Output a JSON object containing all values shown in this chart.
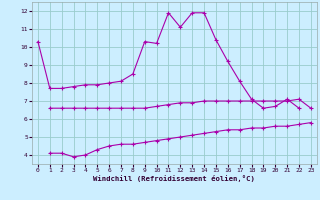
{
  "background_color": "#cceeff",
  "line_color": "#aa00aa",
  "grid_color": "#99cccc",
  "xlim": [
    -0.5,
    23.5
  ],
  "ylim": [
    3.5,
    12.5
  ],
  "yticks": [
    4,
    5,
    6,
    7,
    8,
    9,
    10,
    11,
    12
  ],
  "xticks": [
    0,
    1,
    2,
    3,
    4,
    5,
    6,
    7,
    8,
    9,
    10,
    11,
    12,
    13,
    14,
    15,
    16,
    17,
    18,
    19,
    20,
    21,
    22,
    23
  ],
  "xlabel": "Windchill (Refroidissement éolien,°C)",
  "series": [
    {
      "x": [
        0,
        1,
        2,
        3,
        4,
        5,
        6,
        7,
        8,
        9,
        10,
        11,
        12,
        13,
        14,
        15,
        16,
        17,
        18,
        19,
        20,
        21,
        22
      ],
      "y": [
        10.3,
        7.7,
        7.7,
        7.8,
        7.9,
        7.9,
        8.0,
        8.1,
        8.5,
        10.3,
        10.2,
        11.9,
        11.1,
        11.9,
        11.9,
        10.4,
        9.2,
        8.1,
        7.1,
        6.6,
        6.7,
        7.1,
        6.6
      ]
    },
    {
      "x": [
        1,
        2,
        3,
        4,
        5,
        6,
        7,
        8,
        9,
        10,
        11,
        12,
        13,
        14,
        15,
        16,
        17,
        18,
        19,
        20,
        21,
        22,
        23
      ],
      "y": [
        6.6,
        6.6,
        6.6,
        6.6,
        6.6,
        6.6,
        6.6,
        6.6,
        6.6,
        6.7,
        6.8,
        6.9,
        6.9,
        7.0,
        7.0,
        7.0,
        7.0,
        7.0,
        7.0,
        7.0,
        7.0,
        7.1,
        6.6
      ]
    },
    {
      "x": [
        1,
        2,
        3,
        4,
        5,
        6,
        7,
        8,
        9,
        10,
        11,
        12,
        13,
        14,
        15,
        16,
        17,
        18,
        19,
        20,
        21,
        22,
        23
      ],
      "y": [
        4.1,
        4.1,
        3.9,
        4.0,
        4.3,
        4.5,
        4.6,
        4.6,
        4.7,
        4.8,
        4.9,
        5.0,
        5.1,
        5.2,
        5.3,
        5.4,
        5.4,
        5.5,
        5.5,
        5.6,
        5.6,
        5.7,
        5.8
      ]
    }
  ]
}
